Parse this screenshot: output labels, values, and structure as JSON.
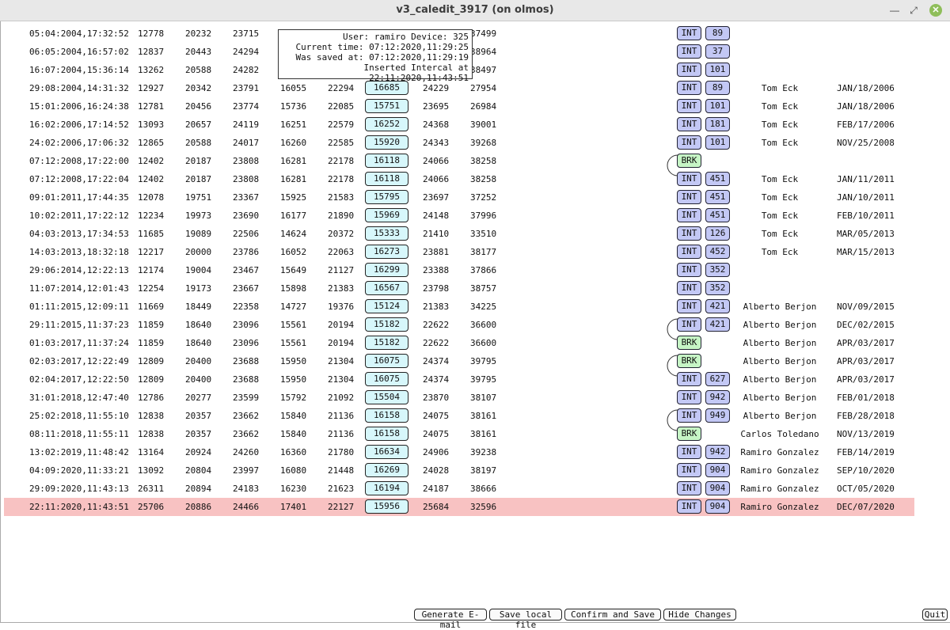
{
  "window": {
    "title": "v3_caledit_3917 (on olmos)"
  },
  "tooltip": {
    "lines": [
      "User: ramiro Device: 325",
      "Current time: 07:12:2020,11:29:25",
      "Was saved at: 07:12:2020,11:29:19",
      "Inserted Intercal at 22:11:2020,11:43:51"
    ]
  },
  "rows": [
    {
      "date": "05:04:2004,17:32:52",
      "v1": "12778",
      "v2": "20232",
      "v3": "23715",
      "v4": "",
      "v5": "",
      "v6": "",
      "v7": "",
      "v8": "37499",
      "type": "INT",
      "num": "89",
      "user": "",
      "udate": ""
    },
    {
      "date": "06:05:2004,16:57:02",
      "v1": "12837",
      "v2": "20443",
      "v3": "24294",
      "v4": "",
      "v5": "",
      "v6": "",
      "v7": "",
      "v8": "38964",
      "type": "INT",
      "num": "37",
      "user": "",
      "udate": ""
    },
    {
      "date": "16:07:2004,15:36:14",
      "v1": "13262",
      "v2": "20588",
      "v3": "24282",
      "v4": "",
      "v5": "",
      "v6": "",
      "v7": "",
      "v8": "38497",
      "type": "INT",
      "num": "101",
      "user": "",
      "udate": ""
    },
    {
      "date": "29:08:2004,14:31:32",
      "v1": "12927",
      "v2": "20342",
      "v3": "23791",
      "v4": "16055",
      "v5": "22294",
      "v6": "16685",
      "v7": "24229",
      "v8": "27954",
      "type": "INT",
      "num": "89",
      "user": "Tom Eck",
      "udate": "JAN/18/2006"
    },
    {
      "date": "15:01:2006,16:24:38",
      "v1": "12781",
      "v2": "20456",
      "v3": "23774",
      "v4": "15736",
      "v5": "22085",
      "v6": "15751",
      "v7": "23695",
      "v8": "26984",
      "type": "INT",
      "num": "101",
      "user": "Tom Eck",
      "udate": "JAN/18/2006"
    },
    {
      "date": "16:02:2006,17:14:52",
      "v1": "13093",
      "v2": "20657",
      "v3": "24119",
      "v4": "16251",
      "v5": "22579",
      "v6": "16252",
      "v7": "24368",
      "v8": "39001",
      "type": "INT",
      "num": "181",
      "user": "Tom Eck",
      "udate": "FEB/17/2006"
    },
    {
      "date": "24:02:2006,17:06:32",
      "v1": "12865",
      "v2": "20588",
      "v3": "24017",
      "v4": "16260",
      "v5": "22585",
      "v6": "15920",
      "v7": "24343",
      "v8": "39268",
      "type": "INT",
      "num": "101",
      "user": "Tom Eck",
      "udate": "NOV/25/2008"
    },
    {
      "date": "07:12:2008,17:22:00",
      "v1": "12402",
      "v2": "20187",
      "v3": "23808",
      "v4": "16281",
      "v5": "22178",
      "v6": "16118",
      "v7": "24066",
      "v8": "38258",
      "type": "BRK",
      "num": "",
      "user": "",
      "udate": ""
    },
    {
      "date": "07:12:2008,17:22:04",
      "v1": "12402",
      "v2": "20187",
      "v3": "23808",
      "v4": "16281",
      "v5": "22178",
      "v6": "16118",
      "v7": "24066",
      "v8": "38258",
      "type": "INT",
      "num": "451",
      "user": "Tom Eck",
      "udate": "JAN/11/2011"
    },
    {
      "date": "09:01:2011,17:44:35",
      "v1": "12078",
      "v2": "19751",
      "v3": "23367",
      "v4": "15925",
      "v5": "21583",
      "v6": "15795",
      "v7": "23697",
      "v8": "37252",
      "type": "INT",
      "num": "451",
      "user": "Tom Eck",
      "udate": "JAN/10/2011"
    },
    {
      "date": "10:02:2011,17:22:12",
      "v1": "12234",
      "v2": "19973",
      "v3": "23690",
      "v4": "16177",
      "v5": "21890",
      "v6": "15969",
      "v7": "24148",
      "v8": "37996",
      "type": "INT",
      "num": "451",
      "user": "Tom Eck",
      "udate": "FEB/10/2011"
    },
    {
      "date": "04:03:2013,17:34:53",
      "v1": "11685",
      "v2": "19089",
      "v3": "22506",
      "v4": "14624",
      "v5": "20372",
      "v6": "15333",
      "v7": "21410",
      "v8": "33510",
      "type": "INT",
      "num": "126",
      "user": "Tom Eck",
      "udate": "MAR/05/2013"
    },
    {
      "date": "14:03:2013,18:32:18",
      "v1": "12217",
      "v2": "20000",
      "v3": "23786",
      "v4": "16052",
      "v5": "22063",
      "v6": "16273",
      "v7": "23881",
      "v8": "38177",
      "type": "INT",
      "num": "452",
      "user": "Tom Eck",
      "udate": "MAR/15/2013"
    },
    {
      "date": "29:06:2014,12:22:13",
      "v1": "12174",
      "v2": "19004",
      "v3": "23467",
      "v4": "15649",
      "v5": "21127",
      "v6": "16299",
      "v7": "23388",
      "v8": "37866",
      "type": "INT",
      "num": "352",
      "user": "",
      "udate": ""
    },
    {
      "date": "11:07:2014,12:01:43",
      "v1": "12254",
      "v2": "19173",
      "v3": "23667",
      "v4": "15898",
      "v5": "21383",
      "v6": "16567",
      "v7": "23798",
      "v8": "38757",
      "type": "INT",
      "num": "352",
      "user": "",
      "udate": ""
    },
    {
      "date": "01:11:2015,12:09:11",
      "v1": "11669",
      "v2": "18449",
      "v3": "22358",
      "v4": "14727",
      "v5": "19376",
      "v6": "15124",
      "v7": "21383",
      "v8": "34225",
      "type": "INT",
      "num": "421",
      "user": "Alberto Berjon",
      "udate": "NOV/09/2015"
    },
    {
      "date": "29:11:2015,11:37:23",
      "v1": "11859",
      "v2": "18640",
      "v3": "23096",
      "v4": "15561",
      "v5": "20194",
      "v6": "15182",
      "v7": "22622",
      "v8": "36600",
      "type": "INT",
      "num": "421",
      "user": "Alberto Berjon",
      "udate": "DEC/02/2015"
    },
    {
      "date": "01:03:2017,11:37:24",
      "v1": "11859",
      "v2": "18640",
      "v3": "23096",
      "v4": "15561",
      "v5": "20194",
      "v6": "15182",
      "v7": "22622",
      "v8": "36600",
      "type": "BRK",
      "num": "",
      "user": "Alberto Berjon",
      "udate": "APR/03/2017"
    },
    {
      "date": "02:03:2017,12:22:49",
      "v1": "12809",
      "v2": "20400",
      "v3": "23688",
      "v4": "15950",
      "v5": "21304",
      "v6": "16075",
      "v7": "24374",
      "v8": "39795",
      "type": "BRK",
      "num": "",
      "user": "Alberto Berjon",
      "udate": "APR/03/2017"
    },
    {
      "date": "02:04:2017,12:22:50",
      "v1": "12809",
      "v2": "20400",
      "v3": "23688",
      "v4": "15950",
      "v5": "21304",
      "v6": "16075",
      "v7": "24374",
      "v8": "39795",
      "type": "INT",
      "num": "627",
      "user": "Alberto Berjon",
      "udate": "APR/03/2017"
    },
    {
      "date": "31:01:2018,12:47:40",
      "v1": "12786",
      "v2": "20277",
      "v3": "23599",
      "v4": "15792",
      "v5": "21092",
      "v6": "15504",
      "v7": "23870",
      "v8": "38107",
      "type": "INT",
      "num": "942",
      "user": "Alberto Berjon",
      "udate": "FEB/01/2018"
    },
    {
      "date": "25:02:2018,11:55:10",
      "v1": "12838",
      "v2": "20357",
      "v3": "23662",
      "v4": "15840",
      "v5": "21136",
      "v6": "16158",
      "v7": "24075",
      "v8": "38161",
      "type": "INT",
      "num": "949",
      "user": "Alberto Berjon",
      "udate": "FEB/28/2018"
    },
    {
      "date": "08:11:2018,11:55:11",
      "v1": "12838",
      "v2": "20357",
      "v3": "23662",
      "v4": "15840",
      "v5": "21136",
      "v6": "16158",
      "v7": "24075",
      "v8": "38161",
      "type": "BRK",
      "num": "",
      "user": "Carlos Toledano",
      "udate": "NOV/13/2019"
    },
    {
      "date": "13:02:2019,11:48:42",
      "v1": "13164",
      "v2": "20924",
      "v3": "24260",
      "v4": "16360",
      "v5": "21780",
      "v6": "16634",
      "v7": "24906",
      "v8": "39238",
      "type": "INT",
      "num": "942",
      "user": "Ramiro Gonzalez",
      "udate": "FEB/14/2019"
    },
    {
      "date": "04:09:2020,11:33:21",
      "v1": "13092",
      "v2": "20804",
      "v3": "23997",
      "v4": "16080",
      "v5": "21448",
      "v6": "16269",
      "v7": "24028",
      "v8": "38197",
      "type": "INT",
      "num": "904",
      "user": "Ramiro Gonzalez",
      "udate": "SEP/10/2020"
    },
    {
      "date": "29:09:2020,11:43:13",
      "v1": "26311",
      "v2": "20894",
      "v3": "24183",
      "v4": "16230",
      "v5": "21623",
      "v6": "16194",
      "v7": "24187",
      "v8": "38666",
      "type": "INT",
      "num": "904",
      "user": "Ramiro Gonzalez",
      "udate": "OCT/05/2020"
    },
    {
      "date": "22:11:2020,11:43:51",
      "v1": "25706",
      "v2": "20886",
      "v3": "24466",
      "v4": "17401",
      "v5": "22127",
      "v6": "15956",
      "v7": "25684",
      "v8": "32596",
      "type": "INT",
      "num": "904",
      "user": "Ramiro Gonzalez",
      "udate": "DEC/07/2020",
      "highlight": true
    }
  ],
  "buttons": {
    "generate_email": "Generate E-mail",
    "save_local": "Save local file",
    "confirm_save": "Confirm and Save",
    "hide_changes": "Hide Changes",
    "quit": "Quit"
  }
}
